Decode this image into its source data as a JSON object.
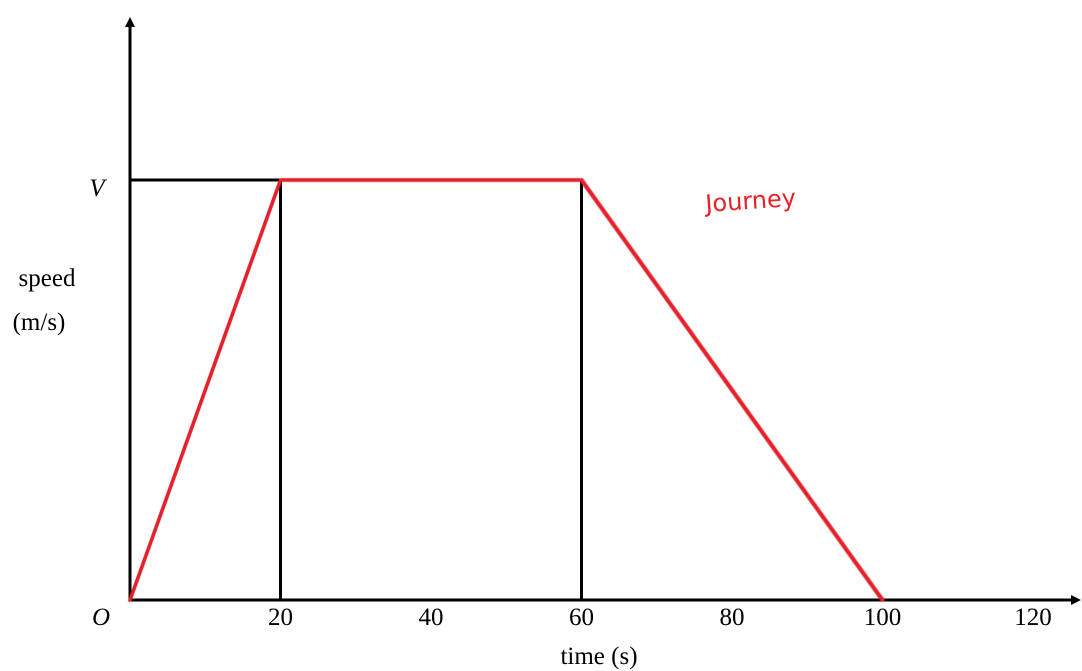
{
  "chart_data": {
    "type": "line",
    "title": "",
    "xlabel": "time (s)",
    "ylabel_lines": [
      "speed",
      "(m/s)"
    ],
    "origin_label": "O",
    "xlim": [
      0,
      120
    ],
    "x_ticks": [
      20,
      40,
      60,
      80,
      100,
      120
    ],
    "x_tick_labels": [
      "20",
      "40",
      "60",
      "80",
      "100",
      "120"
    ],
    "y_tick_label": "V",
    "y_max_level": "V",
    "grid": false,
    "series": [
      {
        "color": "#000000",
        "points": [
          {
            "x": 0,
            "y": 0
          },
          {
            "x": 20,
            "y": "V"
          },
          {
            "x": 60,
            "y": "V"
          },
          {
            "x": 100,
            "y": 0
          }
        ]
      },
      {
        "color": "#e8202a",
        "style": "handwritten",
        "points": [
          {
            "x": 0,
            "y": 0
          },
          {
            "x": 20,
            "y": "V"
          },
          {
            "x": 60,
            "y": "V"
          },
          {
            "x": 100,
            "y": 0
          }
        ]
      }
    ],
    "guides": [
      {
        "type": "horizontal",
        "from_x": 0,
        "to_x": 20,
        "y": "V"
      },
      {
        "type": "vertical",
        "x": 20,
        "from_y": 0,
        "to_y": "V"
      },
      {
        "type": "vertical",
        "x": 60,
        "from_y": 0,
        "to_y": "V"
      }
    ],
    "annotation": {
      "text": "Journey",
      "color": "#e8202a"
    }
  }
}
